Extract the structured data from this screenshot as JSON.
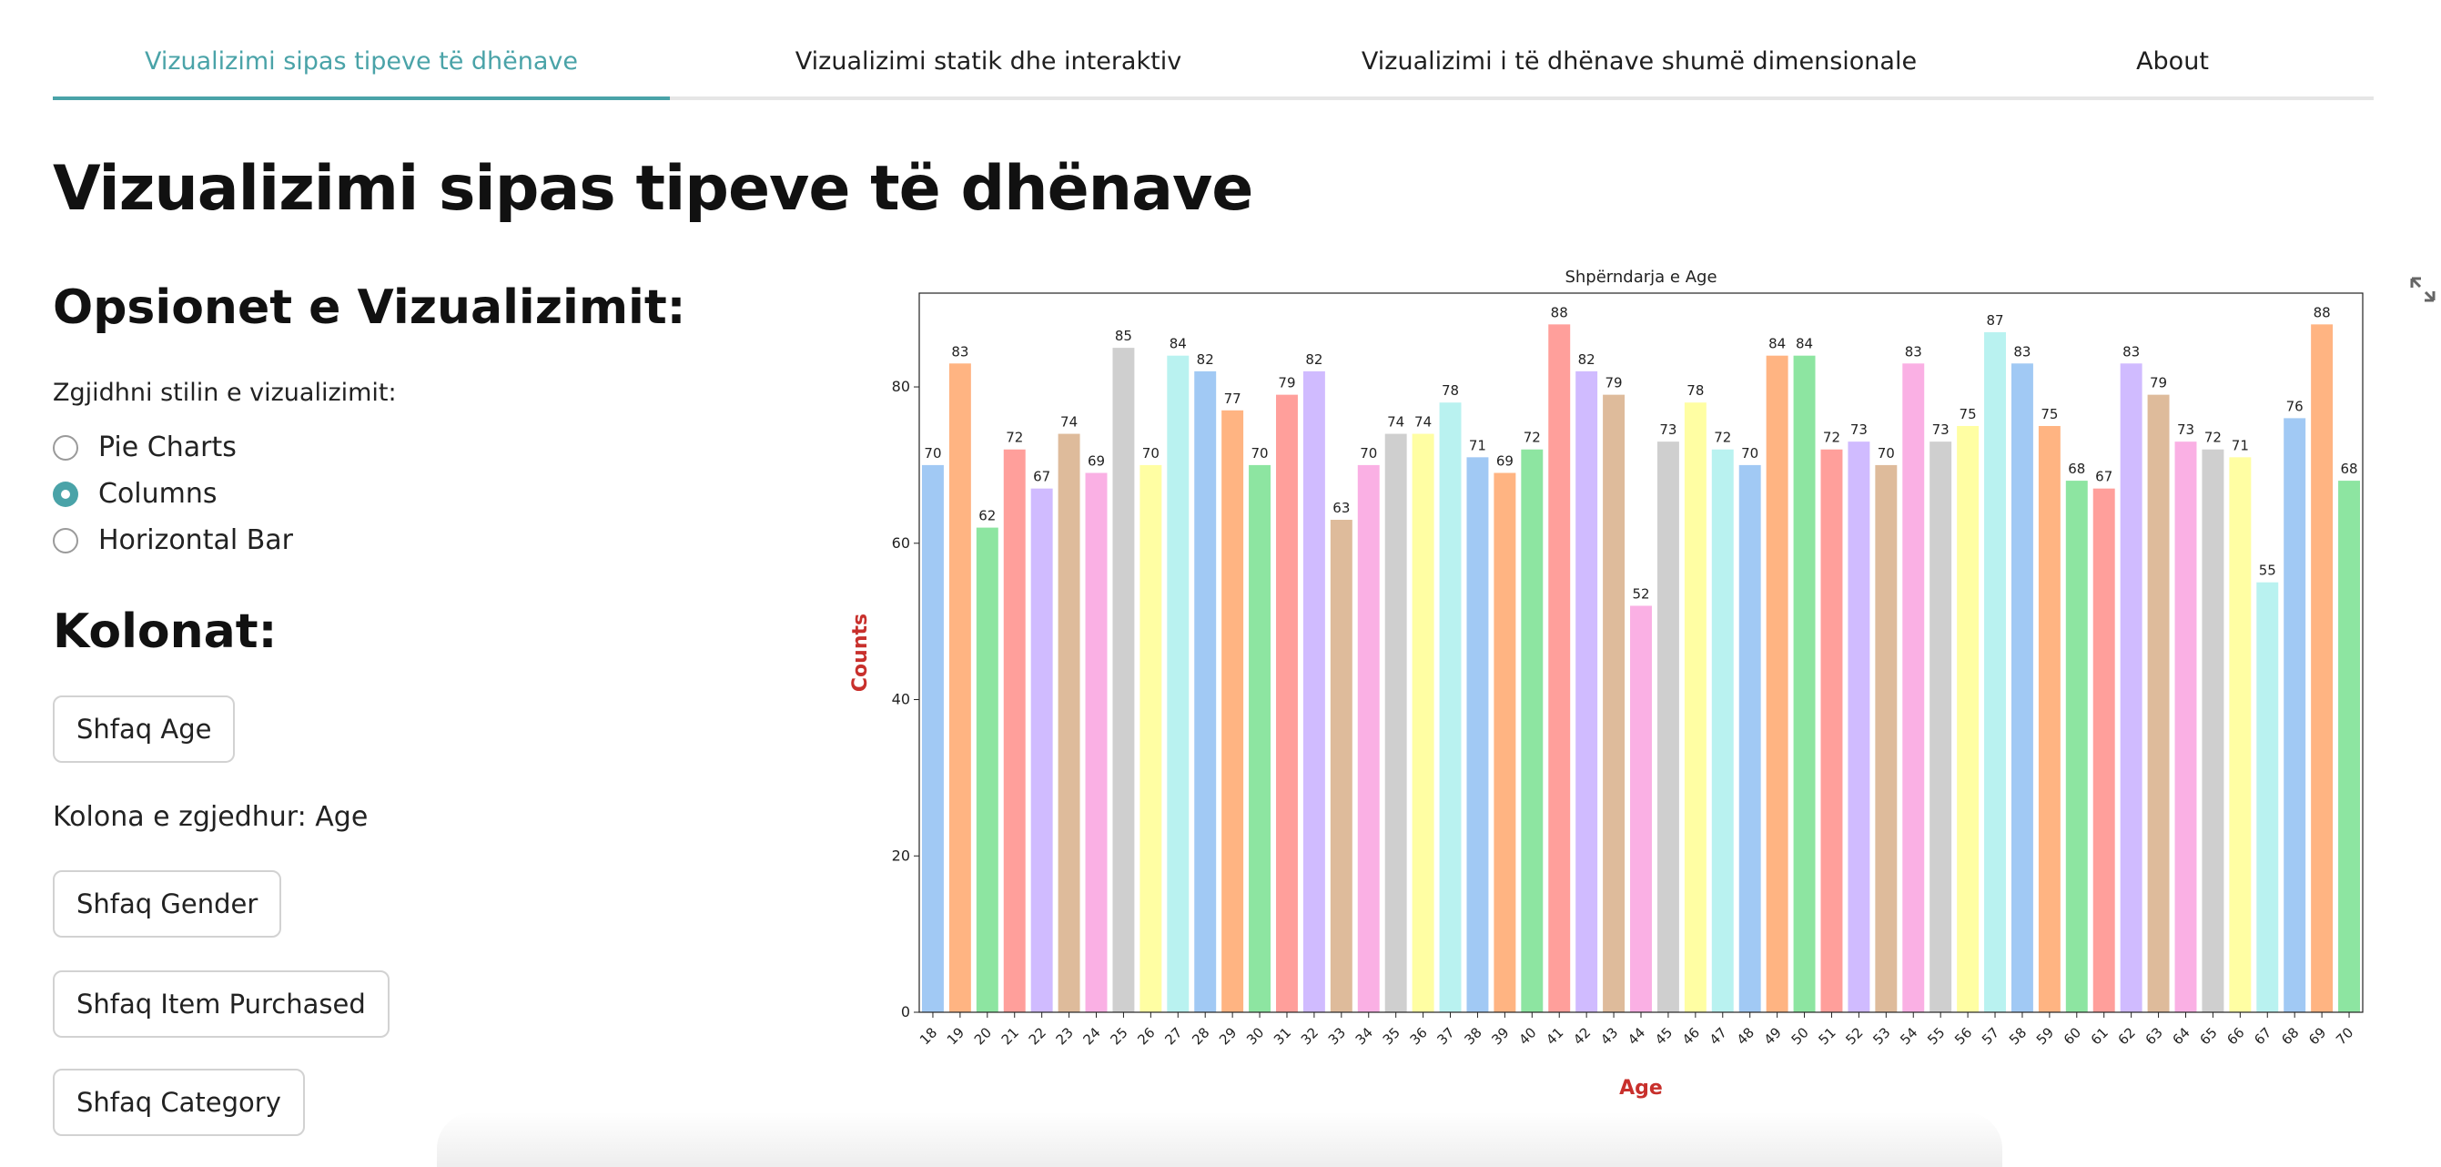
{
  "tabs": [
    {
      "label": "Vizualizimi sipas tipeve të dhënave",
      "active": true
    },
    {
      "label": "Vizualizimi statik dhe interaktiv",
      "active": false
    },
    {
      "label": "Vizualizimi i të dhënave shumë dimensionale",
      "active": false
    },
    {
      "label": "About",
      "active": false
    }
  ],
  "page_title": "Vizualizimi sipas tipeve të dhënave",
  "options": {
    "title": "Opsionet e Vizualizimit:",
    "radio_caption": "Zgjidhni stilin e vizualizimit:",
    "radio_options": [
      "Pie Charts",
      "Columns",
      "Horizontal Bar"
    ],
    "selected": "Columns"
  },
  "columns": {
    "title": "Kolonat:",
    "buttons": [
      "Shfaq Age",
      "Shfaq Gender",
      "Shfaq Item Purchased",
      "Shfaq Category"
    ],
    "selected_text": "Kolona e zgjedhur: Age"
  },
  "colors": {
    "accent": "#4aa3a8",
    "axis_label": "#c8302c",
    "palette": [
      "#a1c9f4",
      "#ffb482",
      "#8de5a1",
      "#ff9f9b",
      "#d0bbff",
      "#debb9b",
      "#fab0e4",
      "#cfcfcf",
      "#fffea3",
      "#b9f2f0"
    ]
  },
  "icons": {
    "expand": "expand-icon"
  },
  "chart_data": {
    "type": "bar",
    "title": "Shpërndarja e Age",
    "xlabel": "Age",
    "ylabel": "Counts",
    "ylim": [
      0,
      92
    ],
    "yticks": [
      0,
      20,
      40,
      60,
      80
    ],
    "grid": false,
    "categories": [
      "18",
      "19",
      "20",
      "21",
      "22",
      "23",
      "24",
      "25",
      "26",
      "27",
      "28",
      "29",
      "30",
      "31",
      "32",
      "33",
      "34",
      "35",
      "36",
      "37",
      "38",
      "39",
      "40",
      "41",
      "42",
      "43",
      "44",
      "45",
      "46",
      "47",
      "48",
      "49",
      "50",
      "51",
      "52",
      "53",
      "54",
      "55",
      "56",
      "57",
      "58",
      "59",
      "60",
      "61",
      "62",
      "63",
      "64",
      "65",
      "66",
      "67",
      "68",
      "69",
      "70"
    ],
    "values": [
      70,
      83,
      62,
      72,
      67,
      74,
      69,
      85,
      70,
      84,
      82,
      77,
      70,
      79,
      82,
      63,
      70,
      74,
      74,
      78,
      71,
      69,
      72,
      88,
      82,
      79,
      52,
      73,
      78,
      72,
      70,
      84,
      84,
      72,
      73,
      70,
      83,
      73,
      75,
      87,
      83,
      75,
      68,
      67,
      83,
      79,
      73,
      72,
      71,
      55,
      76,
      88,
      68
    ]
  }
}
